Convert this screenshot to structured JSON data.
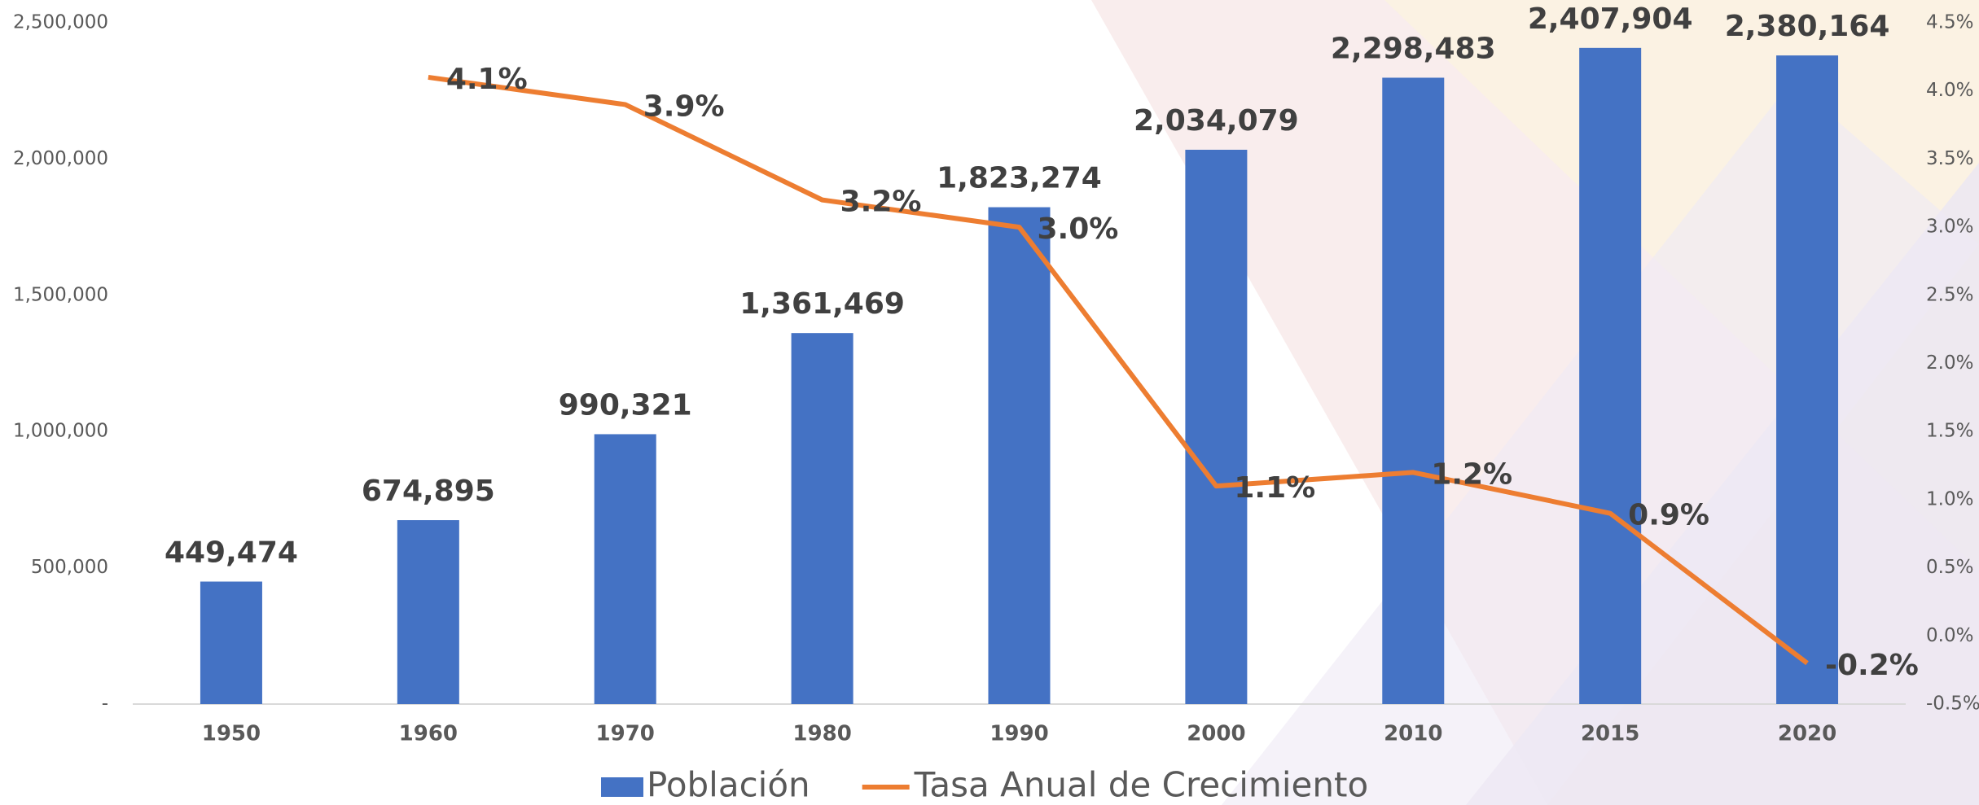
{
  "chart_data": {
    "type": "bar",
    "categories": [
      "1950",
      "1960",
      "1970",
      "1980",
      "1990",
      "2000",
      "2010",
      "2015",
      "2020"
    ],
    "series": [
      {
        "name": "Población",
        "type": "bar",
        "color": "#4472c4",
        "values": [
          449474,
          674895,
          990321,
          1361469,
          1823274,
          2034079,
          2298483,
          2407904,
          2380164
        ],
        "value_labels": [
          "449,474",
          "674,895",
          "990,321",
          "1,361,469",
          "1,823,274",
          "2,034,079",
          "2,298,483",
          "2,407,904",
          "2,380,164"
        ]
      },
      {
        "name": "Tasa Anual de Crecimiento",
        "type": "line",
        "color": "#ed7d31",
        "axis": "y2",
        "values": [
          null,
          4.1,
          3.9,
          3.2,
          3.0,
          1.1,
          1.2,
          0.9,
          -0.2
        ],
        "value_labels": [
          null,
          "4.1%",
          "3.9%",
          "3.2%",
          "3.0%",
          "1.1%",
          "1.2%",
          "0.9%",
          "-0.2%"
        ]
      }
    ],
    "ylim": [
      0,
      2500000
    ],
    "yticks": [
      {
        "value": 0,
        "label": "-"
      },
      {
        "value": 500000,
        "label": "500,000"
      },
      {
        "value": 1000000,
        "label": "1,000,000"
      },
      {
        "value": 1500000,
        "label": "1,500,000"
      },
      {
        "value": 2000000,
        "label": "2,000,000"
      },
      {
        "value": 2500000,
        "label": "2,500,000"
      }
    ],
    "y2lim": [
      -0.5,
      4.5
    ],
    "y2ticks": [
      {
        "value": -0.5,
        "label": "-0.5%"
      },
      {
        "value": 0,
        "label": "0.0%"
      },
      {
        "value": 0.5,
        "label": "0.5%"
      },
      {
        "value": 1,
        "label": "1.0%"
      },
      {
        "value": 1.5,
        "label": "1.5%"
      },
      {
        "value": 2,
        "label": "2.0%"
      },
      {
        "value": 2.5,
        "label": "2.5%"
      },
      {
        "value": 3,
        "label": "3.0%"
      },
      {
        "value": 3.5,
        "label": "3.5%"
      },
      {
        "value": 4,
        "label": "4.0%"
      },
      {
        "value": 4.5,
        "label": "4.5%"
      }
    ],
    "legend": "bottom"
  }
}
